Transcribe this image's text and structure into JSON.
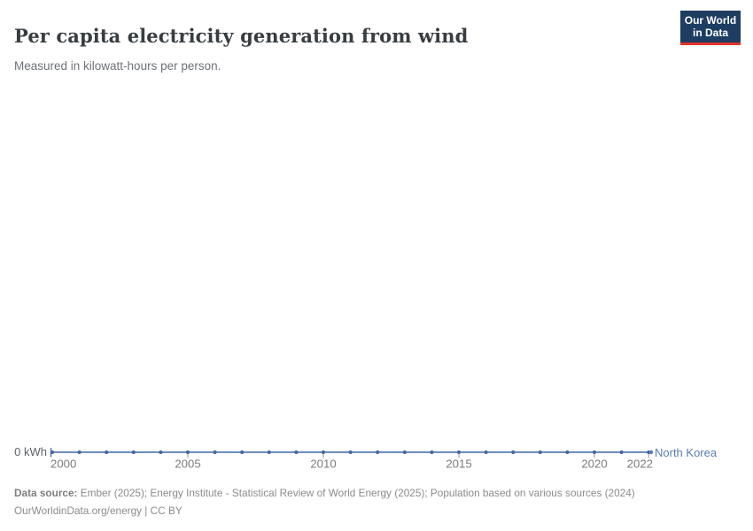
{
  "header": {
    "title": "Per capita electricity generation from wind",
    "subtitle": "Measured in kilowatt-hours per person.",
    "logo_line1": "Our World",
    "logo_line2": "in Data"
  },
  "chart_data": {
    "type": "line",
    "title": "Per capita electricity generation from wind",
    "xlabel": "",
    "ylabel": "",
    "x": [
      2000,
      2001,
      2002,
      2003,
      2004,
      2005,
      2006,
      2007,
      2008,
      2009,
      2010,
      2011,
      2012,
      2013,
      2014,
      2015,
      2016,
      2017,
      2018,
      2019,
      2020,
      2021,
      2022
    ],
    "series": [
      {
        "name": "North Korea",
        "color": "#5b7cb5",
        "values": [
          0,
          0,
          0,
          0,
          0,
          0,
          0,
          0,
          0,
          0,
          0,
          0,
          0,
          0,
          0,
          0,
          0,
          0,
          0,
          0,
          0,
          0,
          0
        ]
      }
    ],
    "x_ticks": [
      2000,
      2005,
      2010,
      2015,
      2020,
      2022
    ],
    "x_tick_labels": [
      "2000",
      "2005",
      "2010",
      "2015",
      "2020",
      "2022"
    ],
    "y_zero_label": "0 kWh",
    "ylim": [
      0,
      0
    ],
    "grid": false,
    "legend_position": "line-end"
  },
  "footer": {
    "source_label": "Data source:",
    "source_text": " Ember (2025); Energy Institute - Statistical Review of World Energy (2025); Population based on various sources (2024)",
    "license_text": "OurWorldinData.org/energy | CC BY"
  },
  "colors": {
    "line": "#5b7cb5",
    "marker": "#46679f",
    "axis_tick": "#9a9a9a",
    "axis_text": "#7b7b7b",
    "logo_bg": "#1d3d63",
    "logo_stripe": "#e0342b"
  }
}
